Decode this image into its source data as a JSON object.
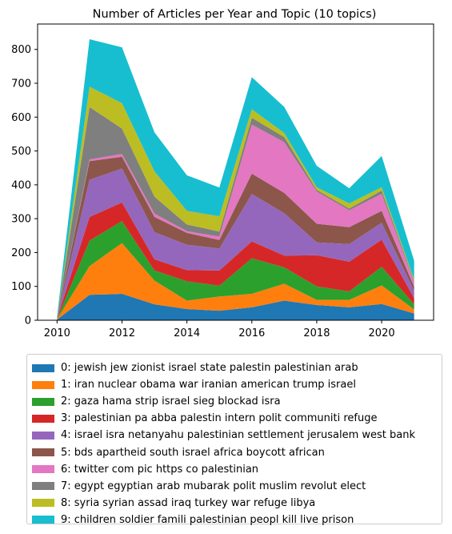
{
  "chart_data": {
    "type": "area",
    "stacked": true,
    "title": "Number of Articles per Year and Topic (10 topics)",
    "xlabel": "",
    "ylabel": "",
    "x": [
      2010,
      2011,
      2012,
      2013,
      2014,
      2015,
      2016,
      2017,
      2018,
      2019,
      2020,
      2021
    ],
    "xlim": [
      2009.4,
      2021.6
    ],
    "ylim": [
      0,
      875
    ],
    "xticks": [
      2010,
      2012,
      2014,
      2016,
      2018,
      2020
    ],
    "yticks": [
      0,
      100,
      200,
      300,
      400,
      500,
      600,
      700,
      800
    ],
    "grid": false,
    "legend_position": "below",
    "series": [
      {
        "name": "0: jewish jew zionist israel state palestin palestinian arab",
        "color": "#1f77b4",
        "values": [
          2,
          75,
          78,
          47,
          33,
          28,
          38,
          58,
          45,
          38,
          48,
          20
        ]
      },
      {
        "name": "1: iran nuclear obama war iranian american trump israel",
        "color": "#ff7f0e",
        "values": [
          1,
          85,
          150,
          70,
          25,
          42,
          40,
          50,
          15,
          22,
          55,
          12
        ]
      },
      {
        "name": "2: gaza hama strip israel sieg blockad isra",
        "color": "#2ca02c",
        "values": [
          1,
          75,
          65,
          30,
          57,
          32,
          105,
          48,
          40,
          25,
          55,
          15
        ]
      },
      {
        "name": "3: palestinian pa abba palestin intern polit communiti refuge",
        "color": "#d62728",
        "values": [
          1,
          70,
          55,
          33,
          33,
          45,
          50,
          35,
          92,
          88,
          80,
          18
        ]
      },
      {
        "name": "4: israel isra netanyahu palestinian settlement jerusalem west bank",
        "color": "#9467bd",
        "values": [
          1,
          110,
          100,
          80,
          75,
          65,
          140,
          125,
          38,
          52,
          50,
          22
        ]
      },
      {
        "name": "5: bds apartheid south israel africa boycott african",
        "color": "#8c564b",
        "values": [
          1,
          55,
          35,
          45,
          35,
          25,
          60,
          60,
          55,
          50,
          35,
          12
        ]
      },
      {
        "name": "6: twitter com pic https co palestinian",
        "color": "#e377c2",
        "values": [
          0,
          5,
          8,
          10,
          5,
          10,
          145,
          150,
          95,
          50,
          50,
          12
        ]
      },
      {
        "name": "7: egypt egyptian arab mubarak polit muslim revolut elect",
        "color": "#7f7f7f",
        "values": [
          0,
          155,
          75,
          50,
          20,
          15,
          20,
          15,
          5,
          5,
          10,
          5
        ]
      },
      {
        "name": "8: syria syrian assad iraq turkey war refuge libya",
        "color": "#bcbd22",
        "values": [
          0,
          60,
          75,
          75,
          40,
          45,
          25,
          12,
          8,
          15,
          10,
          5
        ]
      },
      {
        "name": "9: children soldier famili palestinian peopl kill live prison",
        "color": "#17becf",
        "values": [
          5,
          140,
          165,
          115,
          105,
          85,
          95,
          77,
          63,
          45,
          92,
          55
        ]
      }
    ]
  }
}
